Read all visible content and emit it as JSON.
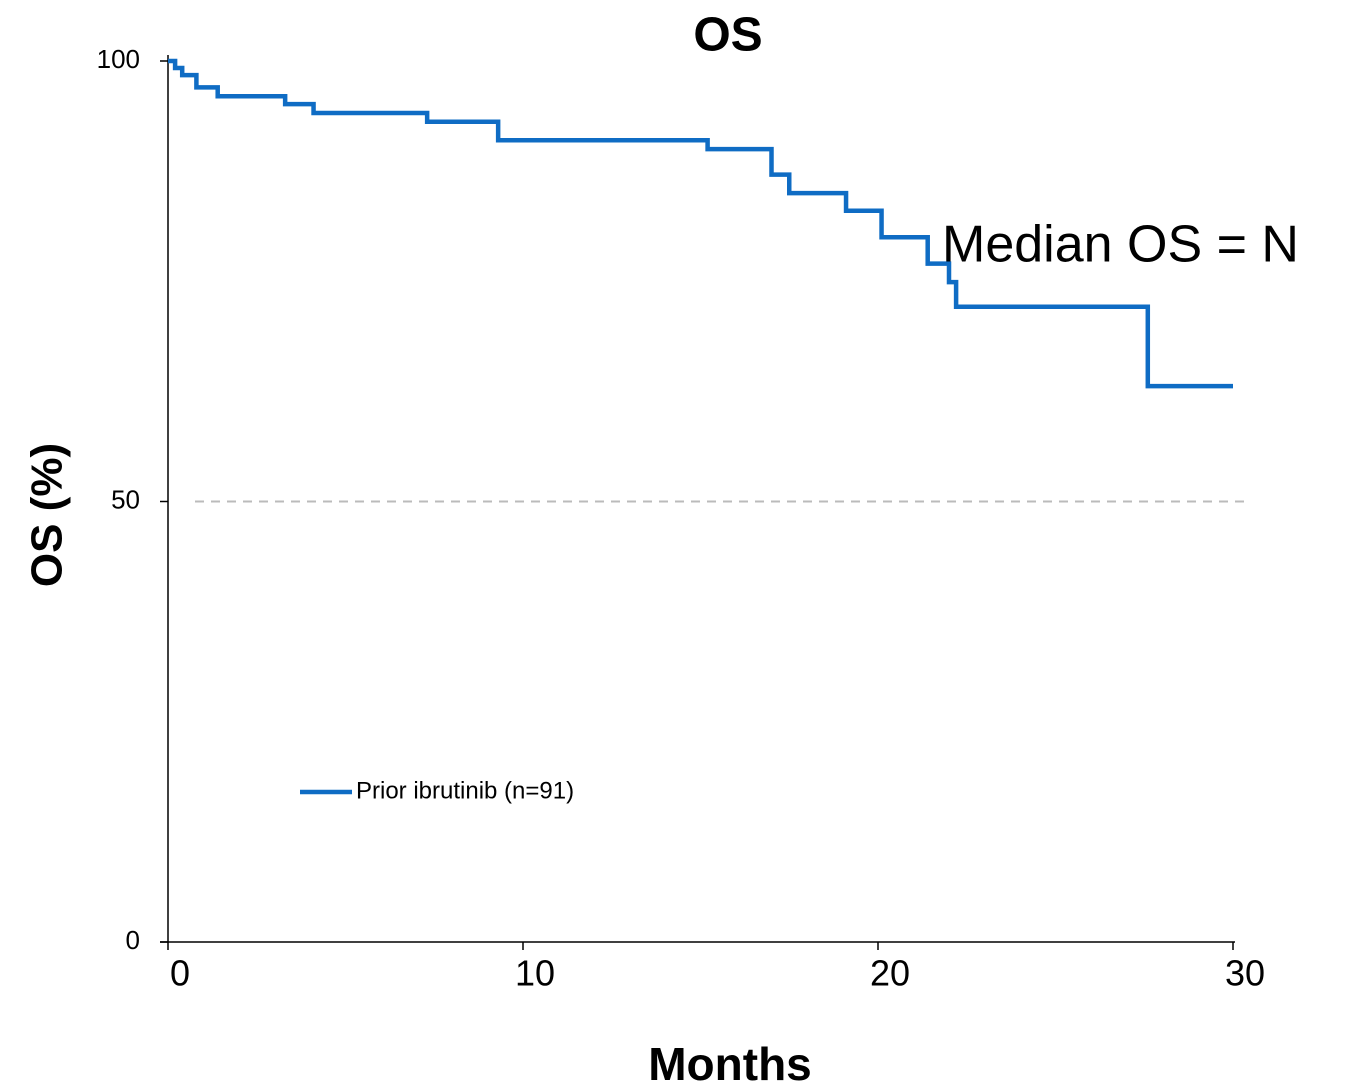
{
  "chart_data": {
    "type": "step",
    "title": "OS",
    "x_label": "Months",
    "y_label": "OS (%)",
    "annotation": "Median OS = N",
    "annotation_color": "#ff0000",
    "x": [
      0,
      0.2,
      0.4,
      0.8,
      1.4,
      3.3,
      4.1,
      7.3,
      9.3,
      15.2,
      17.0,
      17.5,
      19.1,
      20.1,
      21.4,
      22.0,
      22.2,
      27.6,
      30
    ],
    "series": [
      {
        "name": "Prior ibrutinib (n=91)",
        "color": "#0f6cc4",
        "values": [
          100,
          99.2,
          98.4,
          97.0,
          96.0,
          95.1,
          94.1,
          93.1,
          91.0,
          90.0,
          87.1,
          85.0,
          83.0,
          80.0,
          77.0,
          74.9,
          72.1,
          63.1,
          63.1
        ]
      }
    ],
    "reference_line": 50,
    "xlim": [
      0,
      30
    ],
    "xticks": [
      0,
      10,
      20,
      30
    ],
    "ylim": [
      0,
      100
    ],
    "yticks": [
      0,
      50,
      100
    ],
    "legend": "lower left"
  }
}
